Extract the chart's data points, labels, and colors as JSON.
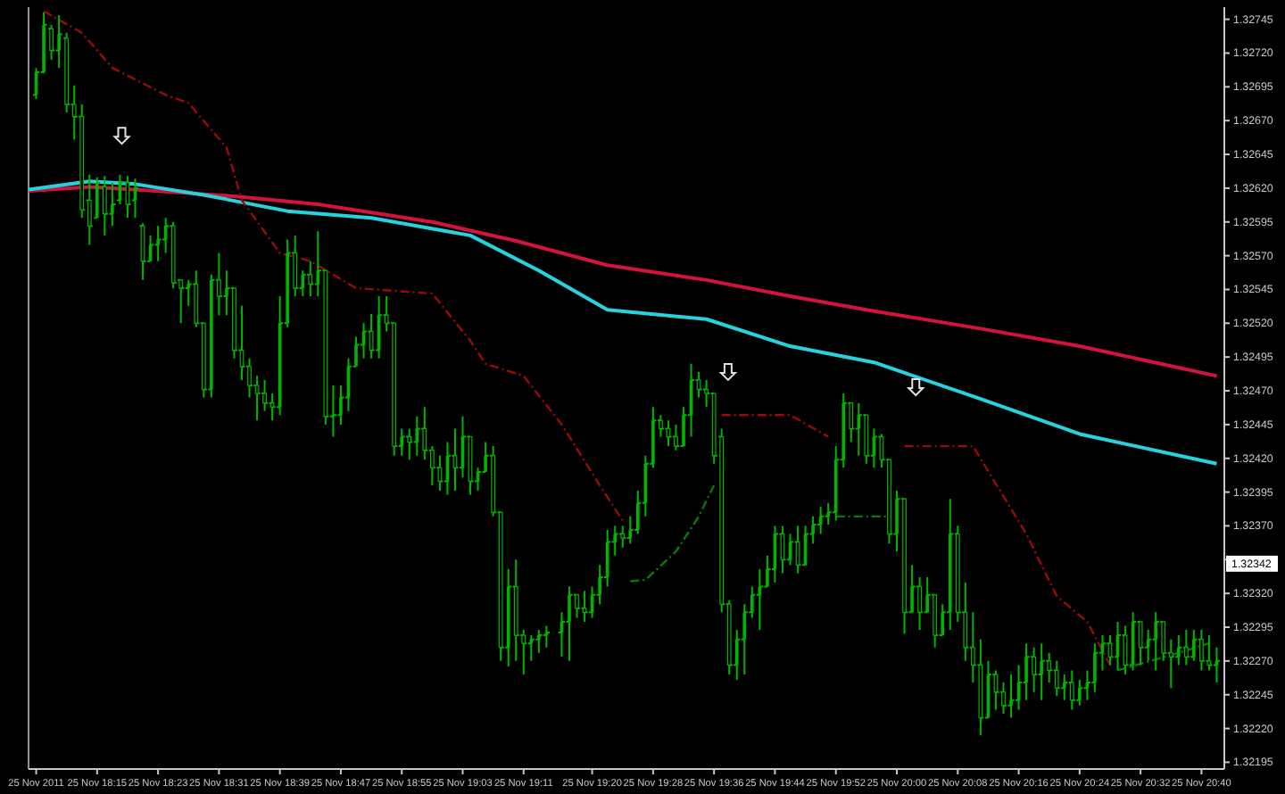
{
  "chart_data": {
    "type": "candlestick",
    "color": "#00b400",
    "x": [
      "2011-11-25T18:07",
      "2011-11-25T18:08",
      "2011-11-25T18:09",
      "2011-11-25T18:10",
      "2011-11-25T18:11",
      "2011-11-25T18:12",
      "2011-11-25T18:13",
      "2011-11-25T18:14",
      "2011-11-25T18:15",
      "2011-11-25T18:16",
      "2011-11-25T18:17",
      "2011-11-25T18:18",
      "2011-11-25T18:19",
      "2011-11-25T18:20",
      "2011-11-25T18:21",
      "2011-11-25T18:22",
      "2011-11-25T18:23",
      "2011-11-25T18:24",
      "2011-11-25T18:25",
      "2011-11-25T18:26",
      "2011-11-25T18:27",
      "2011-11-25T18:28",
      "2011-11-25T18:29",
      "2011-11-25T18:30",
      "2011-11-25T18:31",
      "2011-11-25T18:32",
      "2011-11-25T18:33",
      "2011-11-25T18:34",
      "2011-11-25T18:35",
      "2011-11-25T18:36",
      "2011-11-25T18:37",
      "2011-11-25T18:38",
      "2011-11-25T18:39",
      "2011-11-25T18:40",
      "2011-11-25T18:41",
      "2011-11-25T18:42",
      "2011-11-25T18:43",
      "2011-11-25T18:44",
      "2011-11-25T18:45",
      "2011-11-25T18:46",
      "2011-11-25T18:47",
      "2011-11-25T18:48",
      "2011-11-25T18:49",
      "2011-11-25T18:50",
      "2011-11-25T18:51",
      "2011-11-25T18:52",
      "2011-11-25T18:53",
      "2011-11-25T18:54",
      "2011-11-25T18:55",
      "2011-11-25T18:56",
      "2011-11-25T18:57",
      "2011-11-25T18:58",
      "2011-11-25T18:59",
      "2011-11-25T19:00",
      "2011-11-25T19:01",
      "2011-11-25T19:02",
      "2011-11-25T19:03",
      "2011-11-25T19:04",
      "2011-11-25T19:05",
      "2011-11-25T19:06",
      "2011-11-25T19:07",
      "2011-11-25T19:08",
      "2011-11-25T19:09",
      "2011-11-25T19:10",
      "2011-11-25T19:11",
      "2011-11-25T19:12",
      "2011-11-25T19:13",
      "2011-11-25T19:14",
      "2011-11-25T19:16",
      "2011-11-25T19:17",
      "2011-11-25T19:18",
      "2011-11-25T19:19",
      "2011-11-25T19:20",
      "2011-11-25T19:21",
      "2011-11-25T19:22",
      "2011-11-25T19:23",
      "2011-11-25T19:24",
      "2011-11-25T19:25",
      "2011-11-25T19:26",
      "2011-11-25T19:27",
      "2011-11-25T19:28",
      "2011-11-25T19:29",
      "2011-11-25T19:30",
      "2011-11-25T19:31",
      "2011-11-25T19:32",
      "2011-11-25T19:33",
      "2011-11-25T19:34",
      "2011-11-25T19:35",
      "2011-11-25T19:36",
      "2011-11-25T19:37",
      "2011-11-25T19:38",
      "2011-11-25T19:39",
      "2011-11-25T19:40",
      "2011-11-25T19:41",
      "2011-11-25T19:42",
      "2011-11-25T19:43",
      "2011-11-25T19:44",
      "2011-11-25T19:45",
      "2011-11-25T19:46",
      "2011-11-25T19:47",
      "2011-11-25T19:48",
      "2011-11-25T19:49",
      "2011-11-25T19:50",
      "2011-11-25T19:51",
      "2011-11-25T19:52",
      "2011-11-25T19:53",
      "2011-11-25T19:54",
      "2011-11-25T19:55",
      "2011-11-25T19:56",
      "2011-11-25T19:57",
      "2011-11-25T19:58",
      "2011-11-25T19:59",
      "2011-11-25T20:00",
      "2011-11-25T20:01",
      "2011-11-25T20:02",
      "2011-11-25T20:03",
      "2011-11-25T20:04",
      "2011-11-25T20:05",
      "2011-11-25T20:06",
      "2011-11-25T20:07",
      "2011-11-25T20:08",
      "2011-11-25T20:09",
      "2011-11-25T20:10",
      "2011-11-25T20:11",
      "2011-11-25T20:12",
      "2011-11-25T20:13",
      "2011-11-25T20:14",
      "2011-11-25T20:15",
      "2011-11-25T20:16",
      "2011-11-25T20:17",
      "2011-11-25T20:18",
      "2011-11-25T20:19",
      "2011-11-25T20:20",
      "2011-11-25T20:21",
      "2011-11-25T20:22",
      "2011-11-25T20:23",
      "2011-11-25T20:24",
      "2011-11-25T20:25",
      "2011-11-25T20:26",
      "2011-11-25T20:27",
      "2011-11-25T20:28",
      "2011-11-25T20:29",
      "2011-11-25T20:30",
      "2011-11-25T20:31",
      "2011-11-25T20:32",
      "2011-11-25T20:33",
      "2011-11-25T20:34",
      "2011-11-25T20:35",
      "2011-11-25T20:36",
      "2011-11-25T20:37",
      "2011-11-25T20:38",
      "2011-11-25T20:39",
      "2011-11-25T20:40",
      "2011-11-25T20:41",
      "2011-11-25T20:42"
    ],
    "ohlc": [
      [
        1.32689,
        1.32709,
        1.32686,
        1.32706
      ],
      [
        1.32706,
        1.3275,
        1.32705,
        1.32741
      ],
      [
        1.32738,
        1.32741,
        1.32715,
        1.32722
      ],
      [
        1.32722,
        1.32748,
        1.32709,
        1.32734
      ],
      [
        1.32731,
        1.32735,
        1.32676,
        1.32682
      ],
      [
        1.32682,
        1.32696,
        1.32656,
        1.32673
      ],
      [
        1.32673,
        1.32682,
        1.32598,
        1.32604
      ],
      [
        1.32611,
        1.3263,
        1.32578,
        1.32592
      ],
      [
        1.32598,
        1.32628,
        1.32598,
        1.32624
      ],
      [
        1.32621,
        1.32629,
        1.32585,
        1.32601
      ],
      [
        1.32601,
        1.32624,
        1.32592,
        1.32608
      ],
      [
        1.32611,
        1.3263,
        1.32608,
        1.32624
      ],
      [
        1.32624,
        1.32629,
        1.32598,
        1.32608
      ],
      [
        1.32611,
        1.32627,
        1.32598,
        1.3262
      ],
      [
        1.32592,
        1.32594,
        1.32552,
        1.32566
      ],
      [
        1.32566,
        1.32585,
        1.32566,
        1.32578
      ],
      [
        1.32578,
        1.32592,
        1.32566,
        1.32582
      ],
      [
        1.32582,
        1.32598,
        1.32572,
        1.32592
      ],
      [
        1.32592,
        1.32595,
        1.32546,
        1.3255
      ],
      [
        1.32552,
        1.32552,
        1.3252,
        1.32546
      ],
      [
        1.32546,
        1.32552,
        1.32533,
        1.32549
      ],
      [
        1.32549,
        1.32559,
        1.32517,
        1.3252
      ],
      [
        1.3252,
        1.3252,
        1.32465,
        1.32471
      ],
      [
        1.32471,
        1.32556,
        1.32465,
        1.32552
      ],
      [
        1.32552,
        1.32572,
        1.32526,
        1.3254
      ],
      [
        1.3254,
        1.32559,
        1.32526,
        1.32546
      ],
      [
        1.32546,
        1.32546,
        1.32494,
        1.325
      ],
      [
        1.325,
        1.32533,
        1.32478,
        1.32488
      ],
      [
        1.32488,
        1.32494,
        1.32465,
        1.32474
      ],
      [
        1.32474,
        1.32481,
        1.32448,
        1.32468
      ],
      [
        1.32468,
        1.32478,
        1.32455,
        1.32461
      ],
      [
        1.32461,
        1.32468,
        1.32448,
        1.32458
      ],
      [
        1.32458,
        1.3254,
        1.32452,
        1.3252
      ],
      [
        1.3252,
        1.32582,
        1.32517,
        1.32572
      ],
      [
        1.32572,
        1.32585,
        1.3254,
        1.32546
      ],
      [
        1.32546,
        1.32559,
        1.3254,
        1.32556
      ],
      [
        1.32556,
        1.32566,
        1.3254,
        1.32549
      ],
      [
        1.32549,
        1.32588,
        1.3254,
        1.32559
      ],
      [
        1.32559,
        1.32559,
        1.32445,
        1.32451
      ],
      [
        1.32451,
        1.32474,
        1.32436,
        1.32452
      ],
      [
        1.32452,
        1.32474,
        1.32445,
        1.32465
      ],
      [
        1.32465,
        1.32494,
        1.32455,
        1.32488
      ],
      [
        1.32488,
        1.3251,
        1.32488,
        1.32504
      ],
      [
        1.32504,
        1.3252,
        1.32494,
        1.32514
      ],
      [
        1.32514,
        1.32527,
        1.32494,
        1.325
      ],
      [
        1.325,
        1.3254,
        1.32494,
        1.32526
      ],
      [
        1.32526,
        1.3254,
        1.32514,
        1.3252
      ],
      [
        1.3252,
        1.3252,
        1.32422,
        1.32429
      ],
      [
        1.32429,
        1.32442,
        1.32422,
        1.32436
      ],
      [
        1.32436,
        1.32442,
        1.32419,
        1.32432
      ],
      [
        1.32432,
        1.32451,
        1.32422,
        1.32442
      ],
      [
        1.32442,
        1.32458,
        1.32419,
        1.32426
      ],
      [
        1.32426,
        1.32429,
        1.324,
        1.32413
      ],
      [
        1.32413,
        1.32422,
        1.32396,
        1.32403
      ],
      [
        1.32403,
        1.32432,
        1.32393,
        1.32422
      ],
      [
        1.32422,
        1.32442,
        1.32396,
        1.32413
      ],
      [
        1.32413,
        1.32451,
        1.32406,
        1.32436
      ],
      [
        1.32436,
        1.32436,
        1.32393,
        1.32403
      ],
      [
        1.32403,
        1.32413,
        1.32396,
        1.3241
      ],
      [
        1.3241,
        1.32432,
        1.3241,
        1.32422
      ],
      [
        1.32422,
        1.32429,
        1.32377,
        1.3238
      ],
      [
        1.3238,
        1.3238,
        1.3227,
        1.3228
      ],
      [
        1.3228,
        1.32338,
        1.32266,
        1.32325
      ],
      [
        1.32325,
        1.32345,
        1.3227,
        1.32289
      ],
      [
        1.32289,
        1.32293,
        1.3226,
        1.32283
      ],
      [
        1.32283,
        1.32289,
        1.3227,
        1.32286
      ],
      [
        1.32286,
        1.32293,
        1.32276,
        1.32289
      ],
      [
        1.32289,
        1.32296,
        1.3228,
        1.32291
      ],
      [
        1.32291,
        1.32306,
        1.32273,
        1.32299
      ],
      [
        1.32299,
        1.32325,
        1.3227,
        1.32319
      ],
      [
        1.32319,
        1.32319,
        1.32302,
        1.32309
      ],
      [
        1.32309,
        1.32322,
        1.32299,
        1.32306
      ],
      [
        1.32306,
        1.32325,
        1.32302,
        1.32319
      ],
      [
        1.32319,
        1.32341,
        1.32312,
        1.32332
      ],
      [
        1.32332,
        1.32367,
        1.32325,
        1.32358
      ],
      [
        1.32358,
        1.3237,
        1.32348,
        1.32364
      ],
      [
        1.32364,
        1.3237,
        1.32354,
        1.32361
      ],
      [
        1.32361,
        1.32377,
        1.32357,
        1.32367
      ],
      [
        1.32367,
        1.32396,
        1.32364,
        1.32387
      ],
      [
        1.32387,
        1.32422,
        1.32377,
        1.32416
      ],
      [
        1.32416,
        1.32458,
        1.32413,
        1.32448
      ],
      [
        1.32448,
        1.32452,
        1.32436,
        1.32442
      ],
      [
        1.32442,
        1.32448,
        1.32429,
        1.32436
      ],
      [
        1.32436,
        1.32445,
        1.32426,
        1.32429
      ],
      [
        1.32429,
        1.32458,
        1.32429,
        1.32452
      ],
      [
        1.32452,
        1.3249,
        1.32436,
        1.32478
      ],
      [
        1.32478,
        1.32484,
        1.32465,
        1.32471
      ],
      [
        1.32471,
        1.32478,
        1.32458,
        1.32468
      ],
      [
        1.32468,
        1.32468,
        1.32416,
        1.32422
      ],
      [
        1.32436,
        1.32442,
        1.32306,
        1.32312
      ],
      [
        1.32312,
        1.32315,
        1.3226,
        1.32267
      ],
      [
        1.32267,
        1.32293,
        1.32256,
        1.32286
      ],
      [
        1.32286,
        1.32312,
        1.3226,
        1.32306
      ],
      [
        1.32306,
        1.32325,
        1.32302,
        1.32319
      ],
      [
        1.32319,
        1.32338,
        1.32293,
        1.32325
      ],
      [
        1.32325,
        1.32348,
        1.32325,
        1.32338
      ],
      [
        1.32338,
        1.3237,
        1.32328,
        1.32364
      ],
      [
        1.32364,
        1.3237,
        1.32335,
        1.32345
      ],
      [
        1.32345,
        1.32364,
        1.32341,
        1.32358
      ],
      [
        1.32358,
        1.3237,
        1.32335,
        1.32341
      ],
      [
        1.32341,
        1.3237,
        1.32341,
        1.32364
      ],
      [
        1.32364,
        1.32377,
        1.32357,
        1.32371
      ],
      [
        1.32371,
        1.32384,
        1.32364,
        1.32377
      ],
      [
        1.32377,
        1.32387,
        1.32371,
        1.3238
      ],
      [
        1.3238,
        1.32429,
        1.32374,
        1.32419
      ],
      [
        1.32419,
        1.32468,
        1.32413,
        1.32461
      ],
      [
        1.32461,
        1.32461,
        1.32432,
        1.32442
      ],
      [
        1.32442,
        1.32461,
        1.32422,
        1.32452
      ],
      [
        1.32452,
        1.32452,
        1.32416,
        1.32422
      ],
      [
        1.32422,
        1.32442,
        1.32413,
        1.32436
      ],
      [
        1.32436,
        1.32438,
        1.32413,
        1.32419
      ],
      [
        1.32419,
        1.32419,
        1.32357,
        1.32364
      ],
      [
        1.32364,
        1.32396,
        1.32351,
        1.3239
      ],
      [
        1.3239,
        1.3239,
        1.3229,
        1.32306
      ],
      [
        1.32306,
        1.32341,
        1.32306,
        1.32325
      ],
      [
        1.32325,
        1.32332,
        1.32293,
        1.32306
      ],
      [
        1.32306,
        1.32332,
        1.32306,
        1.32319
      ],
      [
        1.32319,
        1.32319,
        1.3228,
        1.32289
      ],
      [
        1.32289,
        1.32312,
        1.32289,
        1.32306
      ],
      [
        1.32306,
        1.3239,
        1.32293,
        1.32364
      ],
      [
        1.32364,
        1.3237,
        1.32299,
        1.32306
      ],
      [
        1.32306,
        1.32328,
        1.3227,
        1.3228
      ],
      [
        1.3228,
        1.32306,
        1.32254,
        1.32267
      ],
      [
        1.32267,
        1.32286,
        1.32215,
        1.32228
      ],
      [
        1.32228,
        1.3227,
        1.32228,
        1.3226
      ],
      [
        1.3226,
        1.32263,
        1.32234,
        1.32247
      ],
      [
        1.32247,
        1.32254,
        1.32231,
        1.32237
      ],
      [
        1.32237,
        1.3226,
        1.32228,
        1.32241
      ],
      [
        1.32241,
        1.32267,
        1.32234,
        1.32254
      ],
      [
        1.32254,
        1.32283,
        1.32241,
        1.32273
      ],
      [
        1.32273,
        1.3228,
        1.32247,
        1.3226
      ],
      [
        1.3226,
        1.32283,
        1.32241,
        1.3227
      ],
      [
        1.3227,
        1.32276,
        1.32254,
        1.32263
      ],
      [
        1.32263,
        1.3227,
        1.32244,
        1.3225
      ],
      [
        1.3225,
        1.3226,
        1.32241,
        1.32254
      ],
      [
        1.32254,
        1.32263,
        1.32234,
        1.32241
      ],
      [
        1.32241,
        1.32256,
        1.32237,
        1.3225
      ],
      [
        1.3225,
        1.32263,
        1.32241,
        1.32254
      ],
      [
        1.32254,
        1.32283,
        1.32247,
        1.32276
      ],
      [
        1.32276,
        1.32289,
        1.32263,
        1.32283
      ],
      [
        1.32283,
        1.32289,
        1.32267,
        1.32273
      ],
      [
        1.32273,
        1.32299,
        1.32263,
        1.32289
      ],
      [
        1.32289,
        1.32296,
        1.3226,
        1.32267
      ],
      [
        1.32267,
        1.32306,
        1.32263,
        1.32299
      ],
      [
        1.32299,
        1.32299,
        1.32267,
        1.3228
      ],
      [
        1.3228,
        1.32293,
        1.3227,
        1.32286
      ],
      [
        1.32286,
        1.32306,
        1.32263,
        1.32299
      ],
      [
        1.32299,
        1.32299,
        1.3227,
        1.32276
      ],
      [
        1.32276,
        1.32286,
        1.3225,
        1.32273
      ],
      [
        1.32273,
        1.32289,
        1.32267,
        1.3228
      ],
      [
        1.3228,
        1.32293,
        1.32267,
        1.32273
      ],
      [
        1.32273,
        1.32293,
        1.3227,
        1.32286
      ],
      [
        1.32286,
        1.32293,
        1.32263,
        1.3227
      ],
      [
        1.3227,
        1.32289,
        1.32263,
        1.32267
      ],
      [
        1.32267,
        1.3228,
        1.32254,
        1.3227
      ]
    ],
    "series": [
      {
        "type": "line",
        "color": "#d2143c",
        "line_style": "solid",
        "x": [
          "2011-11-25T18:06",
          "2011-11-25T18:14",
          "2011-11-25T18:20",
          "2011-11-25T18:33",
          "2011-11-25T18:44",
          "2011-11-25T18:59",
          "2011-11-25T19:10",
          "2011-11-25T19:22",
          "2011-11-25T19:35",
          "2011-11-25T19:46",
          "2011-11-25T19:57",
          "2011-11-25T20:11",
          "2011-11-25T20:24",
          "2011-11-25T20:42"
        ],
        "values": [
          1.32618,
          1.32621,
          1.32619,
          1.32614,
          1.32608,
          1.32595,
          1.32581,
          1.32563,
          1.32552,
          1.3254,
          1.32529,
          1.32516,
          1.32503,
          1.32481
        ]
      },
      {
        "type": "line",
        "color": "#28d2dc",
        "line_style": "solid",
        "x": [
          "2011-11-25T18:06",
          "2011-11-25T18:14",
          "2011-11-25T18:20",
          "2011-11-25T18:29",
          "2011-11-25T18:40",
          "2011-11-25T18:51",
          "2011-11-25T19:04",
          "2011-11-25T19:13",
          "2011-11-25T19:22",
          "2011-11-25T19:35",
          "2011-11-25T19:46",
          "2011-11-25T19:57",
          "2011-11-25T20:11",
          "2011-11-25T20:24",
          "2011-11-25T20:42"
        ],
        "values": [
          1.32619,
          1.32625,
          1.32623,
          1.32615,
          1.32603,
          1.32598,
          1.32585,
          1.32559,
          1.3253,
          1.32523,
          1.32503,
          1.32491,
          1.32464,
          1.32438,
          1.32416
        ]
      },
      {
        "type": "line",
        "color": "#9b0a0a",
        "line_style": "dashed",
        "x": [
          "2011-11-25T18:08",
          "2011-11-25T18:13",
          "2011-11-25T18:17",
          "2011-11-25T18:24",
          "2011-11-25T18:27",
          "2011-11-25T18:32",
          "2011-11-25T18:34",
          "2011-11-25T18:39",
          "2011-11-25T18:43",
          "2011-11-25T18:49",
          "2011-11-25T18:59",
          "2011-11-25T19:04",
          "2011-11-25T19:06",
          "2011-11-25T19:11",
          "2011-11-25T19:16",
          "2011-11-25T19:21",
          "2011-11-25T19:24",
          "2011-11-25T19:25",
          "2011-11-25T19:37",
          "2011-11-25T19:46",
          "2011-11-25T19:51",
          "2011-11-25T19:52",
          "2011-11-25T20:01",
          "2011-11-25T20:10",
          "2011-11-25T20:17",
          "2011-11-25T20:21",
          "2011-11-25T20:25",
          "2011-11-25T20:28"
        ],
        "values": [
          1.32751,
          1.32735,
          1.32709,
          1.32689,
          1.32683,
          1.3265,
          1.32611,
          1.32572,
          1.32566,
          1.32546,
          1.32542,
          1.32507,
          1.3249,
          1.32481,
          1.32445,
          1.324,
          1.32374,
          null,
          1.32452,
          1.32452,
          1.32436,
          null,
          1.32429,
          1.32429,
          1.32364,
          1.32318,
          1.32299,
          1.32267
        ]
      },
      {
        "type": "line",
        "color": "#0a780a",
        "line_style": "dashed",
        "x": [
          "2011-11-25T19:25",
          "2011-11-25T19:27",
          "2011-11-25T19:31",
          "2011-11-25T19:34",
          "2011-11-25T19:36",
          "2011-11-25T19:37",
          "2011-11-25T19:52",
          "2011-11-25T19:59",
          "2011-11-25T20:00",
          "2011-11-25T20:29",
          "2011-11-25T20:37",
          "2011-11-25T20:41"
        ],
        "values": [
          1.32329,
          1.3233,
          1.32351,
          1.32377,
          1.324,
          null,
          1.32377,
          1.32377,
          null,
          1.32263,
          1.32276,
          1.32283
        ]
      }
    ],
    "xlim": [
      "2011-11-25T18:06",
      "2011-11-25T20:43"
    ],
    "xticks": [
      {
        "value": "2011-11-25T18:07",
        "label": "25 Nov 2011"
      },
      {
        "value": "2011-11-25T18:15",
        "label": "25 Nov 18:15"
      },
      {
        "value": "2011-11-25T18:23",
        "label": "25 Nov 18:23"
      },
      {
        "value": "2011-11-25T18:31",
        "label": "25 Nov 18:31"
      },
      {
        "value": "2011-11-25T18:39",
        "label": "25 Nov 18:39"
      },
      {
        "value": "2011-11-25T18:47",
        "label": "25 Nov 18:47"
      },
      {
        "value": "2011-11-25T18:55",
        "label": "25 Nov 18:55"
      },
      {
        "value": "2011-11-25T19:03",
        "label": "25 Nov 19:03"
      },
      {
        "value": "2011-11-25T19:11",
        "label": "25 Nov 19:11"
      },
      {
        "value": "2011-11-25T19:20",
        "label": "25 Nov 19:20"
      },
      {
        "value": "2011-11-25T19:28",
        "label": "25 Nov 19:28"
      },
      {
        "value": "2011-11-25T19:36",
        "label": "25 Nov 19:36"
      },
      {
        "value": "2011-11-25T19:44",
        "label": "25 Nov 19:44"
      },
      {
        "value": "2011-11-25T19:52",
        "label": "25 Nov 19:52"
      },
      {
        "value": "2011-11-25T20:00",
        "label": "25 Nov 20:00"
      },
      {
        "value": "2011-11-25T20:08",
        "label": "25 Nov 20:08"
      },
      {
        "value": "2011-11-25T20:16",
        "label": "25 Nov 20:16"
      },
      {
        "value": "2011-11-25T20:24",
        "label": "25 Nov 20:24"
      },
      {
        "value": "2011-11-25T20:32",
        "label": "25 Nov 20:32"
      },
      {
        "value": "2011-11-25T20:40",
        "label": "25 Nov 20:40"
      }
    ],
    "ylim": [
      1.3219,
      1.32754
    ],
    "yticks": [
      1.32195,
      {
        "value": 1.3222,
        "label": "1.32220"
      },
      1.32245,
      {
        "value": 1.3227,
        "label": "1.32270"
      },
      1.32295,
      {
        "value": 1.3232,
        "label": "1.32320"
      },
      {
        "value": 1.32345,
        "label": null
      },
      {
        "value": 1.3237,
        "label": "1.32370"
      },
      1.32395,
      {
        "value": 1.3242,
        "label": "1.32420"
      },
      1.32445,
      {
        "value": 1.3247,
        "label": "1.32470"
      },
      1.32495,
      {
        "value": 1.3252,
        "label": "1.32520"
      },
      1.32545,
      {
        "value": 1.3257,
        "label": "1.32570"
      },
      1.32595,
      {
        "value": 1.3262,
        "label": "1.32620"
      },
      1.32645,
      {
        "value": 1.3267,
        "label": "1.32670"
      },
      1.32695,
      {
        "value": 1.3272,
        "label": "1.32720"
      },
      1.32745
    ],
    "annotations": [
      {
        "text": "1.32342",
        "y": 1.32342
      }
    ]
  }
}
